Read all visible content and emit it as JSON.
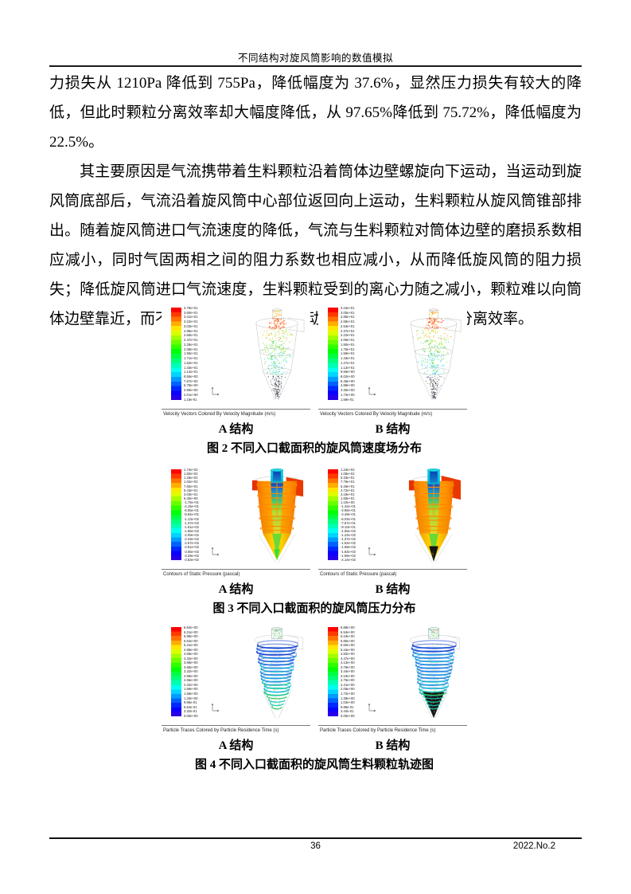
{
  "header": {
    "title": "不同结构对旋风筒影响的数值模拟"
  },
  "footer": {
    "page_number": "36",
    "issue": "2022.No.2"
  },
  "paragraphs": [
    {
      "text": "力损失从 1210Pa 降低到 755Pa，降低幅度为 37.6%，显然压力损失有较大的降低，但此时颗粒分离效率却大幅度降低，从 97.65%降低到 75.72%，降低幅度为 22.5%。",
      "indent": false
    },
    {
      "text": "其主要原因是气流携带着生料颗粒沿着筒体边壁螺旋向下运动，当运动到旋风筒底部后，气流沿着旋风筒中心部位返回向上运动，生料颗粒从旋风筒锥部排出。随着旋风筒进口气流速度的降低，气流与生料颗粒对筒体边壁的磨损系数相应减小，同时气固两相之间的阻力系数也相应减小，从而降低旋风筒的阻力损失；降低旋风筒进口气流速度，生料颗粒受到的离心力随之减小，颗粒难以向筒体边壁靠近，而不易随气流旋转向下运动，从而降低旋风筒的分离效率。",
      "indent": true
    }
  ],
  "colors": {
    "colormap": [
      "#ff0000",
      "#ff3a00",
      "#ff7300",
      "#ffad00",
      "#ffe600",
      "#dcff00",
      "#a3ff00",
      "#69ff00",
      "#30ff00",
      "#00ff08",
      "#00ff41",
      "#00ff7b",
      "#00ffb4",
      "#00ffee",
      "#00d4ff",
      "#009bff",
      "#0061ff",
      "#0028ff",
      "#0d00ff",
      "#2600e6"
    ],
    "rule": "#1a1a1a",
    "page_background": "#ffffff"
  },
  "figures": [
    {
      "kind": "velocity",
      "caption": "图 2 不同入口截面积的旋风筒速度场分布",
      "sub_caption": "Velocity Vectors Colored By Velocity Magnitude (m/s)",
      "panels": [
        {
          "label": "A 结构",
          "variant": "A",
          "colorbar_labels": [
            "3.79e+01",
            "3.60e+01",
            "3.41e+01",
            "3.22e+01",
            "3.03e+01",
            "2.85e+01",
            "2.66e+01",
            "2.47e+01",
            "2.28e+01",
            "2.09e+01",
            "1.90e+01",
            "1.71e+01",
            "1.52e+01",
            "1.33e+01",
            "1.14e+01",
            "9.56e+00",
            "7.67e+00",
            "5.78e+00",
            "3.90e+00",
            "2.01e+00",
            "1.18e-01"
          ]
        },
        {
          "label": "B 结构",
          "variant": "B",
          "colorbar_labels": [
            "3.16e+01",
            "3.00e+01",
            "2.85e+01",
            "2.69e+01",
            "2.53e+01",
            "2.37e+01",
            "2.22e+01",
            "2.06e+01",
            "1.90e+01",
            "1.75e+01",
            "1.59e+01",
            "1.43e+01",
            "1.27e+01",
            "1.12e+01",
            "9.59e+00",
            "8.02e+00",
            "6.45e+00",
            "4.88e+00",
            "3.30e+00",
            "1.73e+00",
            "1.59e-01"
          ]
        }
      ]
    },
    {
      "kind": "pressure",
      "caption": "图 3 不同入口截面积的旋风筒压力分布",
      "sub_caption": "Contours of Static Pressure (pascal)",
      "panels": [
        {
          "label": "A 结构",
          "variant": "A",
          "colorbar_labels": [
            "1.74e+02",
            "1.50e+02",
            "1.26e+02",
            "1.02e+02",
            "7.82e+01",
            "5.43e+01",
            "3.03e+01",
            "6.40e+00",
            "-1.76e+01",
            "-4.15e+01",
            "-6.55e+01",
            "-8.94e+01",
            "-1.13e+02",
            "-1.37e+02",
            "-1.61e+02",
            "-1.85e+02",
            "-2.09e+02",
            "-2.33e+02",
            "-2.57e+02",
            "-2.81e+02",
            "-3.05e+02",
            "-3.29e+02",
            "-3.53e+02"
          ]
        },
        {
          "label": "B 结构",
          "variant": "B",
          "colorbar_labels": [
            "1.24e+02",
            "1.09e+02",
            "9.33e+01",
            "7.79e+01",
            "6.26e+01",
            "4.72e+01",
            "3.18e+01",
            "1.65e+01",
            "1.10e+00",
            "-1.42e+01",
            "-2.96e+01",
            "-4.49e+01",
            "-6.03e+01",
            "-7.57e+01",
            "-9.10e+01",
            "-1.06e+02",
            "-1.22e+02",
            "-1.37e+02",
            "-1.52e+02",
            "-1.68e+02",
            "-1.83e+02",
            "-1.99e+02",
            "-2.14e+02"
          ]
        }
      ]
    },
    {
      "kind": "particle",
      "caption": "图 4 不同入口截面积的旋风筒生料颗粒轨迹图",
      "sub_caption": "Particle Traces Colored by Particle Residence Time (s)",
      "panels": [
        {
          "label": "A 结构",
          "variant": "A",
          "colorbar_labels": [
            "6.64e+00",
            "6.31e+00",
            "5.98e+00",
            "5.64e+00",
            "5.31e+00",
            "4.98e+00",
            "4.65e+00",
            "4.32e+00",
            "3.98e+00",
            "3.65e+00",
            "3.32e+00",
            "2.99e+00",
            "2.66e+00",
            "2.32e+00",
            "1.99e+00",
            "1.66e+00",
            "1.33e+00",
            "9.96e-01",
            "6.64e-01",
            "3.32e-01",
            "0.00e+00"
          ]
        },
        {
          "label": "B 结构",
          "variant": "B",
          "colorbar_labels": [
            "6.88e+00",
            "6.54e+00",
            "6.19e+00",
            "5.85e+00",
            "5.50e+00",
            "5.16e+00",
            "4.82e+00",
            "4.47e+00",
            "4.13e+00",
            "3.78e+00",
            "3.44e+00",
            "3.10e+00",
            "2.75e+00",
            "2.41e+00",
            "2.06e+00",
            "1.72e+00",
            "1.38e+00",
            "1.03e+00",
            "6.88e-01",
            "3.44e-01",
            "0.00e+00"
          ]
        }
      ]
    }
  ]
}
